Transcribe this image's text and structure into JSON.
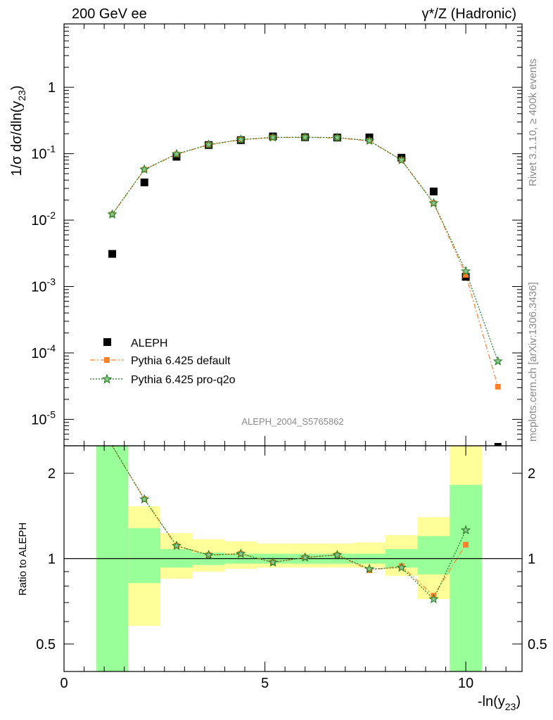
{
  "header": {
    "left": "200 GeV ee",
    "right": "γ*/Z (Hadronic)"
  },
  "side_labels": {
    "rivet": "Rivet 3.1.10, ≥ 400k events",
    "mcplots": "mcplots.cern.ch [arXiv:1306.3436]"
  },
  "watermark": "ALEPH_2004_S5765862",
  "axes": {
    "ylabel_main": "1/σ  dσ/dln(y23)",
    "ylabel_ratio": "Ratio to ALEPH",
    "xlabel": "-ln(y23)",
    "x_ticks": [
      "0",
      "5",
      "10"
    ],
    "y_ticks_main": [
      "10^-5",
      "10^-4",
      "10^-3",
      "10^-2",
      "10^-1",
      "1"
    ],
    "y_ticks_ratio": [
      "0.5",
      "1",
      "2"
    ]
  },
  "legend": {
    "items": [
      {
        "label": "ALEPH",
        "color": "#000000",
        "marker": "square"
      },
      {
        "label": "Pythia 6.425 default",
        "color": "#ff7f2a",
        "marker": "square"
      },
      {
        "label": "Pythia 6.425 pro-q2o",
        "color": "#1a7a1a",
        "marker": "star"
      }
    ]
  },
  "chart_data": {
    "type": "line",
    "x_range": [
      0,
      11.4
    ],
    "main": {
      "yscale": "log",
      "ylim": [
        4e-06,
        9
      ],
      "series": [
        {
          "name": "ALEPH",
          "x": [
            1.2,
            2.0,
            2.8,
            3.6,
            4.4,
            5.2,
            6.0,
            6.8,
            7.6,
            8.4,
            9.2,
            10.0,
            10.8
          ],
          "y": [
            0.0031,
            0.037,
            0.09,
            0.135,
            0.16,
            0.182,
            0.177,
            0.175,
            0.176,
            0.087,
            0.027,
            0.0014,
            2.5e-06
          ]
        },
        {
          "name": "Pythia 6.425 default",
          "x": [
            1.2,
            2.0,
            2.8,
            3.6,
            4.4,
            5.2,
            6.0,
            6.8,
            7.6,
            8.4,
            9.2,
            10.0,
            10.8
          ],
          "y": [
            0.0122,
            0.0575,
            0.098,
            0.136,
            0.162,
            0.175,
            0.176,
            0.173,
            0.156,
            0.08,
            0.018,
            0.0015,
            3.1e-05
          ]
        },
        {
          "name": "Pythia 6.425 pro-q2o",
          "x": [
            1.2,
            2.0,
            2.8,
            3.6,
            4.4,
            5.2,
            6.0,
            6.8,
            7.6,
            8.4,
            9.2,
            10.0,
            10.8
          ],
          "y": [
            0.0122,
            0.058,
            0.099,
            0.137,
            0.163,
            0.176,
            0.177,
            0.175,
            0.157,
            0.08,
            0.018,
            0.0017,
            7.5e-05
          ]
        }
      ]
    },
    "ratio": {
      "yscale": "log",
      "ylim": [
        0.4,
        2.5
      ],
      "reference": 1,
      "bands": [
        {
          "xmin": 0.8,
          "xmax": 1.6,
          "stat_low": 0.4,
          "stat_high": 2.5,
          "tot_low": 0.4,
          "tot_high": 2.5
        },
        {
          "xmin": 1.6,
          "xmax": 2.4,
          "stat_low": 0.82,
          "stat_high": 1.28,
          "tot_low": 0.58,
          "tot_high": 1.53
        },
        {
          "xmin": 2.4,
          "xmax": 3.2,
          "stat_low": 0.93,
          "stat_high": 1.08,
          "tot_low": 0.85,
          "tot_high": 1.23
        },
        {
          "xmin": 3.2,
          "xmax": 4.0,
          "stat_low": 0.95,
          "stat_high": 1.05,
          "tot_low": 0.9,
          "tot_high": 1.17
        },
        {
          "xmin": 4.0,
          "xmax": 4.8,
          "stat_low": 0.96,
          "stat_high": 1.04,
          "tot_low": 0.92,
          "tot_high": 1.15
        },
        {
          "xmin": 4.8,
          "xmax": 5.6,
          "stat_low": 0.96,
          "stat_high": 1.04,
          "tot_low": 0.93,
          "tot_high": 1.13
        },
        {
          "xmin": 5.6,
          "xmax": 6.4,
          "stat_low": 0.96,
          "stat_high": 1.04,
          "tot_low": 0.93,
          "tot_high": 1.13
        },
        {
          "xmin": 6.4,
          "xmax": 7.2,
          "stat_low": 0.96,
          "stat_high": 1.04,
          "tot_low": 0.93,
          "tot_high": 1.13
        },
        {
          "xmin": 7.2,
          "xmax": 8.0,
          "stat_low": 0.96,
          "stat_high": 1.04,
          "tot_low": 0.93,
          "tot_high": 1.14
        },
        {
          "xmin": 8.0,
          "xmax": 8.8,
          "stat_low": 0.93,
          "stat_high": 1.08,
          "tot_low": 0.87,
          "tot_high": 1.21
        },
        {
          "xmin": 8.8,
          "xmax": 9.6,
          "stat_low": 0.88,
          "stat_high": 1.2,
          "tot_low": 0.72,
          "tot_high": 1.4
        },
        {
          "xmin": 9.6,
          "xmax": 10.4,
          "stat_low": 0.4,
          "stat_high": 1.82,
          "tot_low": 0.4,
          "tot_high": 2.5
        }
      ],
      "series": [
        {
          "name": "Pythia 6.425 default",
          "x": [
            1.2,
            2.0,
            2.8,
            3.6,
            4.4,
            5.2,
            6.0,
            6.8,
            7.6,
            8.4,
            9.2,
            10.0
          ],
          "y": [
            3.9,
            1.62,
            1.11,
            1.03,
            1.04,
            0.97,
            1.01,
            1.03,
            0.91,
            0.94,
            0.74,
            1.12
          ]
        },
        {
          "name": "Pythia 6.425 pro-q2o",
          "x": [
            1.2,
            2.0,
            2.8,
            3.6,
            4.4,
            5.2,
            6.0,
            6.8,
            7.6,
            8.4,
            9.2,
            10.0
          ],
          "y": [
            3.9,
            1.62,
            1.11,
            1.03,
            1.04,
            0.97,
            1.01,
            1.03,
            0.92,
            0.93,
            0.72,
            1.26
          ]
        }
      ]
    }
  }
}
